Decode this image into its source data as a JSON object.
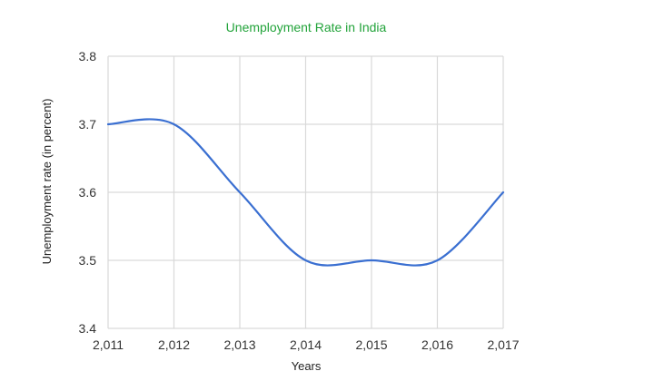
{
  "chart_data": {
    "type": "line",
    "title": "Unemployment Rate in India",
    "xlabel": "Years",
    "ylabel": "Unemployment rate (in percent)",
    "x": [
      2011,
      2012,
      2013,
      2014,
      2015,
      2016,
      2017
    ],
    "x_tick_labels": [
      "2,011",
      "2,012",
      "2,013",
      "2,014",
      "2,015",
      "2,016",
      "2,017"
    ],
    "y_tick_labels": [
      "3.4",
      "3.5",
      "3.6",
      "3.7",
      "3.8"
    ],
    "y_ticks": [
      3.4,
      3.5,
      3.6,
      3.7,
      3.8
    ],
    "ylim": [
      3.4,
      3.8
    ],
    "xlim": [
      2011,
      2017
    ],
    "grid": true,
    "smooth": true,
    "series": [
      {
        "values": [
          3.7,
          3.7,
          3.6,
          3.5,
          3.5,
          3.5,
          3.6
        ],
        "color": "#3a6fd1"
      }
    ]
  }
}
